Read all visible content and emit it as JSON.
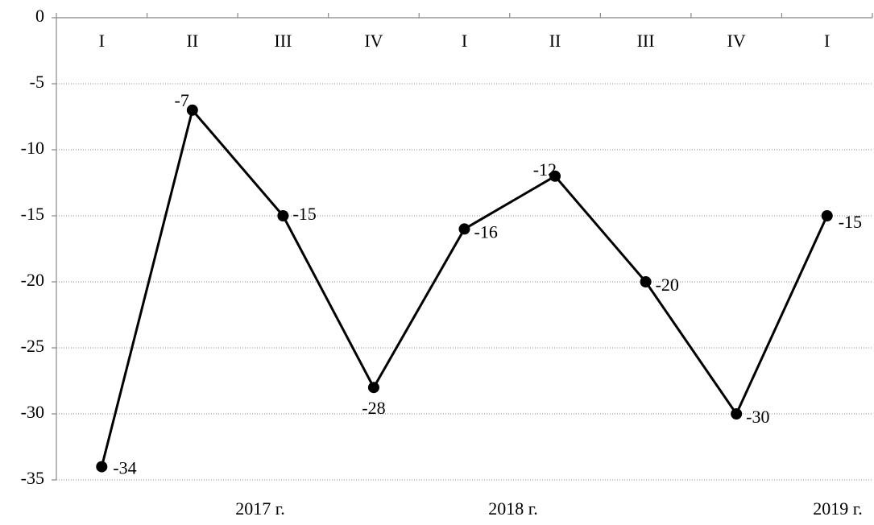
{
  "chart_data": {
    "type": "line",
    "categories": [
      "I",
      "II",
      "III",
      "IV",
      "I",
      "II",
      "III",
      "IV",
      "I"
    ],
    "year_labels": [
      "2017 г.",
      "2018 г.",
      "2019 г."
    ],
    "values": [
      -34,
      -7,
      -15,
      -28,
      -16,
      -12,
      -20,
      -30,
      -15
    ],
    "color": "#000000",
    "ylim": [
      -35,
      0
    ],
    "yticks": [
      0,
      -5,
      -10,
      -15,
      -20,
      -25,
      -30,
      -35
    ],
    "grid": true
  }
}
